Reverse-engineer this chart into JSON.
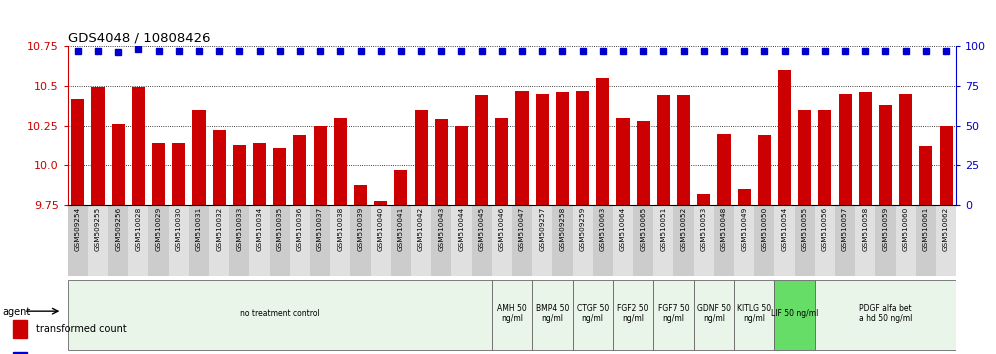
{
  "title": "GDS4048 / 10808426",
  "categories": [
    "GSM509254",
    "GSM509255",
    "GSM509256",
    "GSM510028",
    "GSM510029",
    "GSM510030",
    "GSM510031",
    "GSM510032",
    "GSM510033",
    "GSM510034",
    "GSM510035",
    "GSM510036",
    "GSM510037",
    "GSM510038",
    "GSM510039",
    "GSM510040",
    "GSM510041",
    "GSM510042",
    "GSM510043",
    "GSM510044",
    "GSM510045",
    "GSM510046",
    "GSM510047",
    "GSM509257",
    "GSM509258",
    "GSM509259",
    "GSM510063",
    "GSM510064",
    "GSM510065",
    "GSM510051",
    "GSM510052",
    "GSM510053",
    "GSM510048",
    "GSM510049",
    "GSM510050",
    "GSM510054",
    "GSM510055",
    "GSM510056",
    "GSM510057",
    "GSM510058",
    "GSM510059",
    "GSM510060",
    "GSM510061",
    "GSM510062"
  ],
  "bar_values": [
    10.42,
    10.49,
    10.26,
    10.49,
    10.14,
    10.14,
    10.35,
    10.22,
    10.13,
    10.14,
    10.11,
    10.19,
    10.25,
    10.3,
    9.88,
    9.78,
    9.97,
    10.35,
    10.29,
    10.25,
    10.44,
    10.3,
    10.47,
    10.45,
    10.46,
    10.47,
    10.55,
    10.3,
    10.28,
    10.44,
    10.44,
    9.82,
    10.2,
    9.85,
    10.19,
    10.6,
    10.35,
    10.35,
    10.45,
    10.46,
    10.38,
    10.45,
    10.12,
    10.25
  ],
  "percentile_values": [
    97,
    97,
    96,
    98,
    97,
    97,
    97,
    97,
    97,
    97,
    97,
    97,
    97,
    97,
    97,
    97,
    97,
    97,
    97,
    97,
    97,
    97,
    97,
    97,
    97,
    97,
    97,
    97,
    97,
    97,
    97,
    97,
    97,
    97,
    97,
    97,
    97,
    97,
    97,
    97,
    97,
    97,
    97,
    97
  ],
  "ylim_left": [
    9.75,
    10.75
  ],
  "ylim_right": [
    0,
    100
  ],
  "yticks_left": [
    9.75,
    10.0,
    10.25,
    10.5,
    10.75
  ],
  "yticks_right": [
    0,
    25,
    50,
    75,
    100
  ],
  "bar_color": "#cc0000",
  "dot_color": "#0000cc",
  "groups": [
    {
      "label": "no treatment control",
      "start": 0,
      "end": 20,
      "color": "#e8f5e8"
    },
    {
      "label": "AMH 50\nng/ml",
      "start": 21,
      "end": 22,
      "color": "#e8f5e8"
    },
    {
      "label": "BMP4 50\nng/ml",
      "start": 23,
      "end": 24,
      "color": "#e8f5e8"
    },
    {
      "label": "CTGF 50\nng/ml",
      "start": 25,
      "end": 26,
      "color": "#e8f5e8"
    },
    {
      "label": "FGF2 50\nng/ml",
      "start": 27,
      "end": 28,
      "color": "#e8f5e8"
    },
    {
      "label": "FGF7 50\nng/ml",
      "start": 29,
      "end": 30,
      "color": "#e8f5e8"
    },
    {
      "label": "GDNF 50\nng/ml",
      "start": 31,
      "end": 32,
      "color": "#e8f5e8"
    },
    {
      "label": "KITLG 50\nng/ml",
      "start": 33,
      "end": 34,
      "color": "#e8f5e8"
    },
    {
      "label": "LIF 50 ng/ml",
      "start": 35,
      "end": 36,
      "color": "#66dd66"
    },
    {
      "label": "PDGF alfa bet\na hd 50 ng/ml",
      "start": 37,
      "end": 43,
      "color": "#e8f5e8"
    }
  ],
  "dot_size": 4.5,
  "bar_width": 0.65
}
